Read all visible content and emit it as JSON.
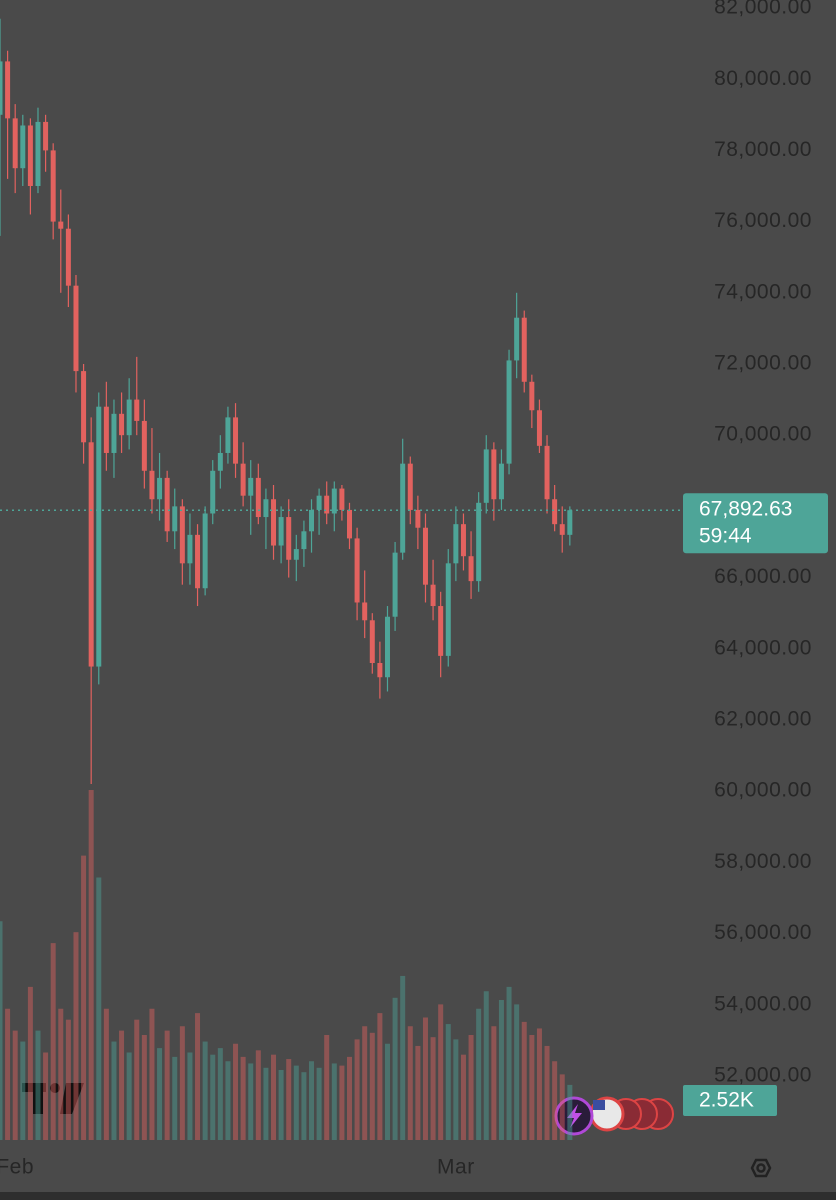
{
  "chart_data": {
    "type": "candlestick",
    "x": [
      -2,
      -1,
      0,
      1,
      2,
      3,
      4,
      5,
      6,
      7,
      8,
      9,
      10,
      11,
      12,
      13,
      14,
      15,
      16,
      17,
      18,
      19,
      20,
      21,
      22,
      23,
      24,
      25,
      26,
      27,
      28,
      29,
      30,
      31,
      32,
      33,
      34,
      35,
      36,
      37,
      38,
      39,
      40,
      41,
      42,
      43,
      44,
      45,
      46,
      47,
      48,
      49,
      50,
      51,
      52,
      53,
      54,
      55,
      56,
      57,
      58,
      59,
      60,
      61,
      62,
      63,
      64,
      65,
      66,
      67,
      68,
      69,
      70,
      71,
      72,
      73
    ],
    "open": [
      79000,
      80500,
      78900,
      77500,
      78700,
      77000,
      78800,
      78000,
      76000,
      75800,
      74200,
      71800,
      69800,
      63500,
      70800,
      69500,
      70600,
      70000,
      71000,
      70400,
      69000,
      68200,
      68800,
      67300,
      68000,
      66400,
      67200,
      65700,
      67800,
      69000,
      69500,
      70500,
      69200,
      68300,
      68800,
      67700,
      68200,
      66900,
      67700,
      66500,
      66800,
      67300,
      67900,
      68300,
      67800,
      68500,
      67900,
      67100,
      65300,
      64800,
      63600,
      63200,
      64900,
      66700,
      69200,
      67900,
      67400,
      65800,
      65200,
      63800,
      66400,
      67500,
      66600,
      65900,
      68100,
      69600,
      68200,
      69200,
      72100,
      73300,
      71500,
      70700,
      69700,
      68200,
      67500,
      67200
    ],
    "high": [
      81700,
      80800,
      79300,
      79000,
      78900,
      79200,
      79000,
      78200,
      76900,
      76200,
      74500,
      72000,
      70500,
      71200,
      71500,
      71000,
      71200,
      71600,
      72200,
      71000,
      70200,
      69500,
      69000,
      68500,
      68200,
      67800,
      67500,
      68000,
      69300,
      70000,
      70800,
      70900,
      69800,
      69300,
      69200,
      68500,
      68600,
      68000,
      68200,
      67200,
      67600,
      68200,
      68500,
      68700,
      68700,
      68600,
      68100,
      67400,
      66200,
      65000,
      64200,
      65200,
      67000,
      69900,
      69400,
      68300,
      67800,
      66500,
      65600,
      66800,
      68000,
      67800,
      67300,
      68400,
      70000,
      69800,
      69600,
      72400,
      74000,
      73500,
      71700,
      71000,
      70000,
      68600,
      68000,
      68000
    ],
    "low": [
      75600,
      77200,
      76800,
      77000,
      76200,
      76800,
      77400,
      75500,
      74000,
      73600,
      71200,
      69200,
      60200,
      63000,
      69000,
      68800,
      69500,
      69600,
      70000,
      68500,
      67800,
      67600,
      67000,
      66800,
      65800,
      65800,
      65200,
      65500,
      67500,
      68500,
      69200,
      68800,
      68000,
      67200,
      67500,
      66800,
      66500,
      66400,
      66000,
      65900,
      66300,
      66700,
      67200,
      67500,
      67300,
      67600,
      66800,
      64800,
      64300,
      63300,
      62600,
      62800,
      64500,
      66500,
      67500,
      66800,
      65300,
      64800,
      63200,
      63500,
      65900,
      66200,
      65400,
      65600,
      67800,
      67600,
      67900,
      68900,
      71600,
      71200,
      70200,
      69500,
      67800,
      67300,
      66700,
      66900
    ],
    "close": [
      80500,
      78900,
      77500,
      78700,
      77000,
      78800,
      78000,
      76000,
      75800,
      74200,
      71800,
      69800,
      63500,
      70800,
      69500,
      70600,
      70000,
      71000,
      70400,
      69000,
      68200,
      68800,
      67300,
      68000,
      66400,
      67200,
      65700,
      67800,
      69000,
      69500,
      70500,
      69200,
      68300,
      68800,
      67700,
      68200,
      66900,
      67700,
      66500,
      66800,
      67300,
      67900,
      68300,
      67800,
      68500,
      67900,
      67100,
      65300,
      64800,
      63600,
      63200,
      64900,
      66700,
      69200,
      67900,
      67400,
      65800,
      65200,
      63800,
      66400,
      67500,
      66600,
      65900,
      68100,
      69600,
      68200,
      69200,
      72100,
      73300,
      71500,
      70700,
      69700,
      68200,
      67500,
      67200,
      67892.63
    ],
    "volume": [
      10000,
      6000,
      5000,
      4500,
      7000,
      5000,
      4000,
      9000,
      6000,
      5500,
      9500,
      13000,
      16000,
      12000,
      6000,
      4500,
      5000,
      4000,
      5500,
      4800,
      6000,
      4200,
      5000,
      3800,
      5200,
      4000,
      5800,
      4500,
      3900,
      4200,
      3600,
      4400,
      3800,
      3500,
      4100,
      3300,
      3900,
      3200,
      3700,
      3400,
      3100,
      3600,
      3300,
      4800,
      3500,
      3400,
      3800,
      4600,
      5200,
      4900,
      5800,
      4400,
      6500,
      7500,
      5200,
      4300,
      5600,
      4700,
      6200,
      5300,
      4600,
      3900,
      4800,
      6000,
      6800,
      5200,
      6400,
      7000,
      6200,
      5400,
      4800,
      5100,
      4300,
      3600,
      3000,
      2520
    ],
    "ylim": [
      50200,
      82225
    ],
    "yticks": [
      {
        "value": 82000,
        "label": "82,000.00"
      },
      {
        "value": 80000,
        "label": "80,000.00"
      },
      {
        "value": 78000,
        "label": "78,000.00"
      },
      {
        "value": 76000,
        "label": "76,000.00"
      },
      {
        "value": 74000,
        "label": "74,000.00"
      },
      {
        "value": 72000,
        "label": "72,000.00"
      },
      {
        "value": 70000,
        "label": "70,000.00"
      },
      {
        "value": 68000,
        "label": "68,000.00"
      },
      {
        "value": 66000,
        "label": "66,000.00"
      },
      {
        "value": 64000,
        "label": "64,000.00"
      },
      {
        "value": 62000,
        "label": "62,000.00"
      },
      {
        "value": 60000,
        "label": "60,000.00"
      },
      {
        "value": 58000,
        "label": "58,000.00"
      },
      {
        "value": 56000,
        "label": "56,000.00"
      },
      {
        "value": 54000,
        "label": "54,000.00"
      },
      {
        "value": 52000,
        "label": "52,000.00"
      }
    ],
    "xlim": [
      -2,
      87.5
    ],
    "xticks": [
      {
        "value": 0,
        "label": "Feb"
      },
      {
        "value": 58,
        "label": "Mar"
      }
    ],
    "volume_lim": [
      0,
      16000
    ],
    "last_price_label": "67,892.63",
    "countdown": "59:44",
    "volume_label": "2.52K",
    "up_color": "#4ea598",
    "down_color": "#e2625f"
  }
}
